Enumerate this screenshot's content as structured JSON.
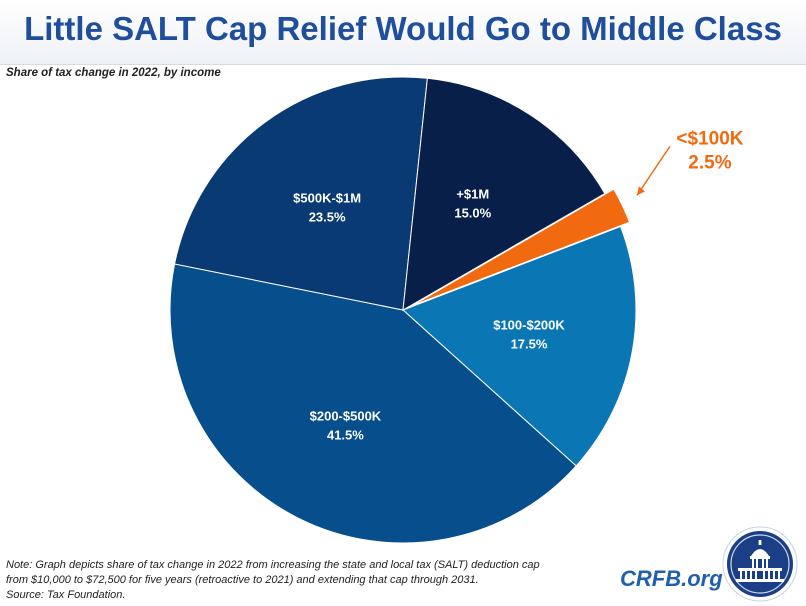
{
  "header": {
    "title": "Little SALT Cap Relief Would Go to Middle Class",
    "subtitle": "Share of tax change in 2022, by income"
  },
  "chart_data": {
    "type": "pie",
    "title": "Little SALT Cap Relief Would Go to Middle Class",
    "subtitle": "Share of tax change in 2022, by income",
    "slices": [
      {
        "label": "<$100K",
        "value_label": "2.5%",
        "value": 2.5,
        "color": "#f26a10",
        "exploded": true
      },
      {
        "label": "$100-$200K",
        "value_label": "17.5%",
        "value": 17.5,
        "color": "#0a77b4"
      },
      {
        "label": "$200-$500K",
        "value_label": "41.5%",
        "value": 41.5,
        "color": "#064e8c"
      },
      {
        "label": "$500K-$1M",
        "value_label": "23.5%",
        "value": 23.5,
        "color": "#0a3a73"
      },
      {
        "label": "+$1M",
        "value_label": "15.0%",
        "value": 15.0,
        "color": "#081f4a"
      }
    ]
  },
  "footer": {
    "note_line1": "Note: Graph depicts share of tax change in 2022 from increasing the state and local tax (SALT) deduction cap",
    "note_line2": "from $10,000 to $72,500 for five years (retroactive to 2021) and extending that cap through 2031.",
    "note_line3": "Source: Tax Foundation.",
    "brand": "CRFB.org"
  }
}
